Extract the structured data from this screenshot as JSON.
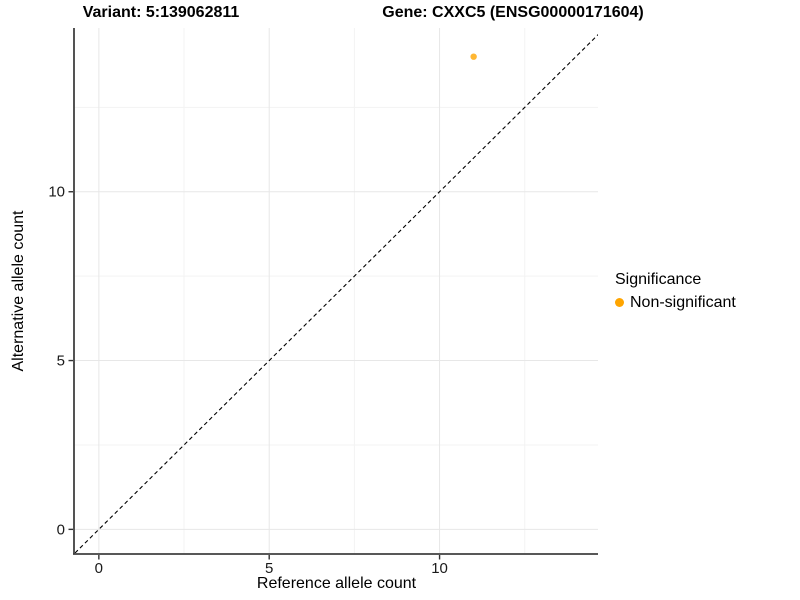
{
  "header": {
    "variant_title": "Variant: 5:139062811",
    "gene_title": "Gene: CXXC5 (ENSG00000171604)"
  },
  "axes": {
    "x_label": "Reference allele count",
    "y_label": "Alternative allele count"
  },
  "legend": {
    "title": "Significance",
    "items": [
      {
        "label": "Non-significant",
        "color": "#FFA500",
        "marker": "circle"
      }
    ]
  },
  "chart_data": {
    "type": "scatter",
    "title": "Variant: 5:139062811 / Gene: CXXC5 (ENSG00000171604)",
    "xlabel": "Reference allele count",
    "ylabel": "Alternative allele count",
    "xlim": [
      -0.7,
      14.65
    ],
    "ylim": [
      -0.7,
      14.85
    ],
    "x_ticks": [
      0,
      5,
      10
    ],
    "y_ticks": [
      0,
      5,
      10
    ],
    "x_minor_ticks": [
      2.5,
      7.5,
      12.5
    ],
    "y_minor_ticks": [
      2.5,
      7.5,
      12.5
    ],
    "grid": "major and minor, light gray on white",
    "legend_position": "right",
    "series": [
      {
        "name": "Non-significant",
        "color": "#FFA500",
        "opacity": 0.8,
        "marker_radius": 3.2,
        "points": [
          {
            "x": 11,
            "y": 14
          }
        ]
      }
    ],
    "reference_line": {
      "type": "identity y=x",
      "style": "dashed",
      "color": "#000000"
    }
  },
  "style": {
    "axis_line_color": "#404040",
    "tick_color": "#333333",
    "major_grid_color": "#E7E7E7",
    "minor_grid_color": "#F3F3F3",
    "background": "#FFFFFF"
  }
}
